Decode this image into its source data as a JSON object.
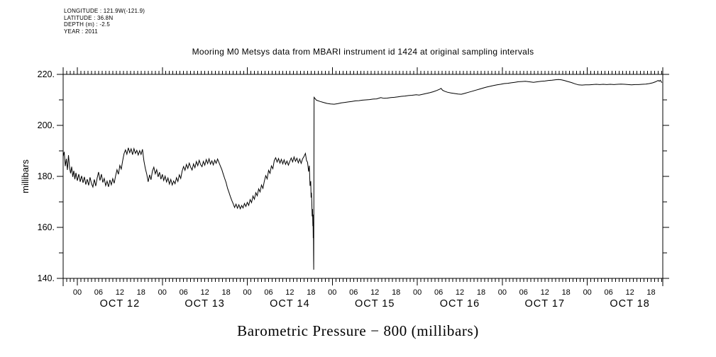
{
  "header": {
    "longitude": "LONGITUDE : 121.9W(-121.9)",
    "latitude": "LATITUDE : 36.8N",
    "depth": "DEPTH (m) : -2.5",
    "year": "YEAR : 2011"
  },
  "chart_data": {
    "type": "line",
    "title": "Mooring M0 Metsys data from MBARI instrument id 1424 at original sampling intervals",
    "caption": "Barometric Pressure − 800 (millibars)",
    "legend_position": "none",
    "grid": false,
    "line_color": "#000000",
    "background": "#ffffff",
    "x_axis": {
      "unit": "hours since OCT 12 00:00",
      "t_min": -4.0,
      "t_max": 165.3,
      "minor_tick_hours": 1,
      "major_tick_hours": 24,
      "hour_label_step": 6,
      "hour_label_texts": [
        "00",
        "06",
        "12",
        "18"
      ],
      "days": [
        {
          "label": "OCT 12",
          "noon_t": 12
        },
        {
          "label": "OCT 13",
          "noon_t": 36
        },
        {
          "label": "OCT 14",
          "noon_t": 60
        },
        {
          "label": "OCT 15",
          "noon_t": 84
        },
        {
          "label": "OCT 16",
          "noon_t": 108
        },
        {
          "label": "OCT 17",
          "noon_t": 132
        },
        {
          "label": "OCT 18",
          "noon_t": 156
        }
      ]
    },
    "y_axis": {
      "min": 140,
      "max": 220,
      "tick_step": 10,
      "label_step": 20,
      "tick_labels": [
        "140.",
        "160.",
        "180.",
        "200.",
        "220."
      ],
      "axis_label": "millibars"
    },
    "series": [
      {
        "name": "barometric pressure - 800",
        "points": [
          [
            -4.0,
            187.8
          ],
          [
            -3.7,
            189.6
          ],
          [
            -3.4,
            184.0
          ],
          [
            -3.1,
            186.9
          ],
          [
            -2.8,
            182.5
          ],
          [
            -2.5,
            188.3
          ],
          [
            -2.2,
            183.6
          ],
          [
            -1.9,
            181.2
          ],
          [
            -1.6,
            183.8
          ],
          [
            -1.3,
            179.8
          ],
          [
            -1.0,
            182.2
          ],
          [
            -0.7,
            178.9
          ],
          [
            -0.4,
            181.4
          ],
          [
            0.0,
            178.3
          ],
          [
            0.4,
            180.9
          ],
          [
            0.8,
            177.9
          ],
          [
            1.2,
            180.2
          ],
          [
            1.6,
            177.5
          ],
          [
            2.0,
            179.8
          ],
          [
            2.4,
            176.8
          ],
          [
            2.8,
            178.9
          ],
          [
            3.2,
            176.5
          ],
          [
            3.6,
            179.6
          ],
          [
            4.0,
            177.2
          ],
          [
            4.4,
            175.8
          ],
          [
            4.8,
            178.8
          ],
          [
            5.2,
            176.2
          ],
          [
            5.6,
            179.3
          ],
          [
            6.0,
            181.7
          ],
          [
            6.4,
            178.4
          ],
          [
            6.8,
            180.9
          ],
          [
            7.2,
            177.6
          ],
          [
            7.6,
            179.2
          ],
          [
            8.0,
            176.4
          ],
          [
            8.4,
            178.1
          ],
          [
            8.8,
            175.9
          ],
          [
            9.2,
            178.6
          ],
          [
            9.6,
            176.7
          ],
          [
            10.0,
            179.1
          ],
          [
            10.4,
            177.3
          ],
          [
            10.8,
            180.2
          ],
          [
            11.2,
            182.6
          ],
          [
            11.6,
            180.8
          ],
          [
            12.0,
            184.3
          ],
          [
            12.4,
            182.9
          ],
          [
            12.8,
            186.2
          ],
          [
            13.2,
            188.9
          ],
          [
            13.6,
            190.4
          ],
          [
            14.0,
            188.7
          ],
          [
            14.4,
            191.2
          ],
          [
            14.8,
            189.3
          ],
          [
            15.2,
            190.8
          ],
          [
            15.6,
            188.5
          ],
          [
            16.0,
            190.9
          ],
          [
            16.4,
            189.0
          ],
          [
            16.8,
            190.2
          ],
          [
            17.2,
            188.4
          ],
          [
            17.6,
            190.1
          ],
          [
            18.0,
            188.6
          ],
          [
            18.4,
            190.6
          ],
          [
            18.8,
            186.1
          ],
          [
            19.2,
            183.1
          ],
          [
            19.6,
            180.9
          ],
          [
            20.0,
            177.9
          ],
          [
            20.4,
            180.6
          ],
          [
            20.8,
            178.7
          ],
          [
            21.2,
            182.1
          ],
          [
            21.6,
            183.6
          ],
          [
            22.0,
            181.0
          ],
          [
            22.4,
            182.6
          ],
          [
            22.8,
            179.8
          ],
          [
            23.2,
            181.6
          ],
          [
            23.6,
            178.9
          ],
          [
            24.0,
            180.8
          ],
          [
            24.4,
            178.4
          ],
          [
            24.8,
            180.1
          ],
          [
            25.2,
            177.8
          ],
          [
            25.6,
            179.4
          ],
          [
            26.0,
            177.0
          ],
          [
            26.4,
            178.8
          ],
          [
            26.8,
            176.6
          ],
          [
            27.2,
            178.2
          ],
          [
            27.6,
            177.1
          ],
          [
            28.0,
            179.5
          ],
          [
            28.4,
            178.0
          ],
          [
            28.8,
            180.6
          ],
          [
            29.2,
            179.2
          ],
          [
            29.6,
            182.1
          ],
          [
            30.0,
            183.9
          ],
          [
            30.4,
            182.4
          ],
          [
            30.8,
            184.7
          ],
          [
            31.2,
            183.1
          ],
          [
            31.6,
            185.2
          ],
          [
            32.0,
            183.6
          ],
          [
            32.4,
            182.5
          ],
          [
            32.8,
            184.9
          ],
          [
            33.2,
            183.4
          ],
          [
            33.6,
            185.8
          ],
          [
            34.0,
            184.2
          ],
          [
            34.4,
            186.3
          ],
          [
            34.8,
            184.6
          ],
          [
            35.2,
            183.8
          ],
          [
            35.6,
            185.9
          ],
          [
            36.0,
            184.4
          ],
          [
            36.4,
            186.6
          ],
          [
            36.8,
            185.0
          ],
          [
            37.2,
            186.9
          ],
          [
            37.6,
            184.8
          ],
          [
            38.0,
            186.1
          ],
          [
            38.4,
            184.5
          ],
          [
            38.8,
            186.4
          ],
          [
            39.2,
            185.1
          ],
          [
            39.6,
            186.8
          ],
          [
            40.0,
            185.4
          ],
          [
            40.4,
            184.0
          ],
          [
            40.8,
            182.7
          ],
          [
            41.2,
            180.9
          ],
          [
            41.6,
            179.2
          ],
          [
            42.0,
            177.6
          ],
          [
            42.4,
            175.4
          ],
          [
            42.8,
            173.8
          ],
          [
            43.2,
            172.1
          ],
          [
            43.6,
            170.6
          ],
          [
            44.0,
            169.3
          ],
          [
            44.4,
            167.8
          ],
          [
            44.8,
            169.1
          ],
          [
            45.2,
            167.5
          ],
          [
            45.6,
            168.9
          ],
          [
            46.0,
            167.3
          ],
          [
            46.4,
            168.6
          ],
          [
            46.8,
            167.6
          ],
          [
            47.2,
            169.4
          ],
          [
            47.6,
            168.2
          ],
          [
            48.0,
            169.8
          ],
          [
            48.4,
            168.6
          ],
          [
            48.8,
            170.9
          ],
          [
            49.2,
            169.7
          ],
          [
            49.6,
            172.3
          ],
          [
            50.0,
            171.0
          ],
          [
            50.4,
            173.6
          ],
          [
            50.8,
            172.4
          ],
          [
            51.2,
            175.1
          ],
          [
            51.6,
            173.9
          ],
          [
            52.0,
            176.6
          ],
          [
            52.4,
            175.3
          ],
          [
            52.8,
            178.1
          ],
          [
            53.2,
            180.3
          ],
          [
            53.6,
            179.0
          ],
          [
            54.0,
            182.4
          ],
          [
            54.4,
            181.2
          ],
          [
            54.8,
            184.1
          ],
          [
            55.2,
            183.0
          ],
          [
            55.6,
            186.2
          ],
          [
            56.0,
            187.3
          ],
          [
            56.4,
            185.6
          ],
          [
            56.8,
            187.0
          ],
          [
            57.2,
            185.2
          ],
          [
            57.6,
            186.7
          ],
          [
            58.0,
            184.9
          ],
          [
            58.4,
            186.5
          ],
          [
            58.8,
            184.7
          ],
          [
            59.2,
            186.0
          ],
          [
            59.6,
            184.4
          ],
          [
            60.0,
            185.9
          ],
          [
            60.4,
            187.2
          ],
          [
            60.8,
            185.7
          ],
          [
            61.2,
            187.6
          ],
          [
            61.6,
            185.9
          ],
          [
            62.0,
            187.1
          ],
          [
            62.4,
            185.3
          ],
          [
            62.8,
            186.8
          ],
          [
            63.2,
            185.1
          ],
          [
            63.6,
            186.9
          ],
          [
            64.0,
            187.8
          ],
          [
            64.4,
            189.0
          ],
          [
            64.7,
            186.3
          ],
          [
            65.0,
            185.5
          ],
          [
            65.3,
            181.9
          ],
          [
            65.5,
            184.2
          ],
          [
            65.7,
            176.3
          ],
          [
            65.9,
            178.1
          ],
          [
            66.0,
            171.7
          ],
          [
            66.1,
            173.6
          ],
          [
            66.2,
            169.8
          ],
          [
            66.3,
            164.3
          ],
          [
            66.4,
            167.2
          ],
          [
            66.5,
            160.5
          ],
          [
            66.55,
            165.0
          ],
          [
            66.6,
            155.8
          ],
          [
            66.65,
            162.0
          ],
          [
            66.7,
            148.9
          ],
          [
            66.75,
            143.4
          ],
          [
            66.85,
            211.0
          ],
          [
            67.5,
            209.9
          ],
          [
            68.5,
            209.4
          ],
          [
            69.5,
            209.0
          ],
          [
            70.5,
            208.6
          ],
          [
            71.5,
            208.4
          ],
          [
            72.5,
            208.3
          ],
          [
            73.5,
            208.5
          ],
          [
            74.5,
            208.8
          ],
          [
            75.5,
            209.0
          ],
          [
            76.5,
            209.2
          ],
          [
            77.5,
            209.4
          ],
          [
            78.5,
            209.6
          ],
          [
            79.5,
            209.7
          ],
          [
            80.5,
            209.9
          ],
          [
            81.5,
            210.0
          ],
          [
            82.5,
            210.1
          ],
          [
            83.5,
            210.3
          ],
          [
            84.5,
            210.4
          ],
          [
            85.7,
            210.9
          ],
          [
            86.5,
            210.6
          ],
          [
            87.5,
            210.7
          ],
          [
            88.5,
            210.9
          ],
          [
            89.5,
            211.0
          ],
          [
            90.5,
            211.2
          ],
          [
            91.5,
            211.4
          ],
          [
            92.5,
            211.5
          ],
          [
            93.5,
            211.7
          ],
          [
            94.5,
            211.8
          ],
          [
            95.7,
            212.0
          ],
          [
            96.5,
            211.9
          ],
          [
            97.5,
            212.2
          ],
          [
            98.5,
            212.5
          ],
          [
            99.5,
            212.8
          ],
          [
            100.5,
            213.2
          ],
          [
            101.5,
            213.7
          ],
          [
            102.3,
            214.2
          ],
          [
            102.7,
            214.5
          ],
          [
            103.1,
            213.8
          ],
          [
            103.7,
            213.4
          ],
          [
            104.5,
            213.0
          ],
          [
            105.5,
            212.7
          ],
          [
            106.5,
            212.5
          ],
          [
            107.5,
            212.3
          ],
          [
            108.4,
            212.2
          ],
          [
            109.5,
            212.6
          ],
          [
            110.5,
            213.0
          ],
          [
            111.5,
            213.4
          ],
          [
            112.5,
            213.8
          ],
          [
            113.5,
            214.2
          ],
          [
            114.5,
            214.6
          ],
          [
            115.5,
            215.0
          ],
          [
            116.5,
            215.3
          ],
          [
            117.5,
            215.6
          ],
          [
            118.5,
            215.9
          ],
          [
            119.5,
            216.1
          ],
          [
            120.5,
            216.4
          ],
          [
            121.5,
            216.5
          ],
          [
            122.5,
            216.7
          ],
          [
            123.5,
            216.9
          ],
          [
            124.5,
            217.1
          ],
          [
            125.5,
            217.2
          ],
          [
            126.5,
            217.3
          ],
          [
            127.5,
            217.1
          ],
          [
            128.8,
            216.9
          ],
          [
            130.0,
            217.1
          ],
          [
            131.0,
            217.3
          ],
          [
            132.0,
            217.4
          ],
          [
            133.0,
            217.6
          ],
          [
            134.0,
            217.7
          ],
          [
            135.0,
            217.9
          ],
          [
            135.8,
            218.0
          ],
          [
            136.6,
            217.9
          ],
          [
            137.5,
            217.6
          ],
          [
            138.5,
            217.2
          ],
          [
            139.5,
            216.8
          ],
          [
            140.5,
            216.3
          ],
          [
            141.5,
            215.9
          ],
          [
            142.5,
            215.8
          ],
          [
            143.5,
            215.9
          ],
          [
            144.5,
            215.9
          ],
          [
            145.5,
            216.0
          ],
          [
            146.5,
            216.1
          ],
          [
            147.5,
            216.0
          ],
          [
            148.5,
            216.1
          ],
          [
            149.5,
            216.0
          ],
          [
            150.5,
            216.1
          ],
          [
            151.5,
            216.0
          ],
          [
            152.5,
            216.1
          ],
          [
            153.5,
            216.2
          ],
          [
            154.5,
            216.1
          ],
          [
            155.5,
            216.0
          ],
          [
            156.5,
            215.9
          ],
          [
            157.5,
            216.0
          ],
          [
            158.5,
            216.0
          ],
          [
            159.5,
            216.1
          ],
          [
            160.5,
            216.2
          ],
          [
            161.5,
            216.4
          ],
          [
            162.5,
            216.7
          ],
          [
            163.3,
            217.1
          ],
          [
            164.0,
            217.6
          ],
          [
            164.3,
            217.3
          ],
          [
            164.6,
            217.7
          ],
          [
            164.9,
            217.0
          ],
          [
            165.1,
            216.8
          ]
        ]
      }
    ]
  }
}
